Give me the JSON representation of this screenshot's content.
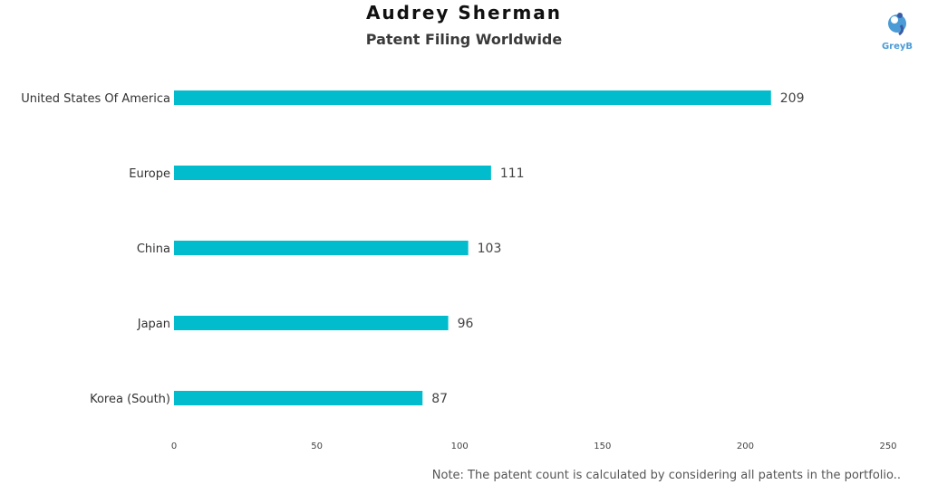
{
  "colors": {
    "bar": "#00bccc",
    "text": "#333333",
    "logo": "#4a9bd6"
  },
  "logo": {
    "text": "GreyB",
    "icon": "greyb-logo-icon"
  },
  "note": "Note: The patent count is calculated by considering all patents in the portfolio..",
  "chart_data": {
    "type": "bar",
    "orientation": "horizontal",
    "title": "Audrey Sherman",
    "subtitle": "Patent Filing Worldwide",
    "categories": [
      "United States Of America",
      "Europe",
      "China",
      "Japan",
      "Korea (South)"
    ],
    "values": [
      209,
      111,
      103,
      96,
      87
    ],
    "xlim": [
      0,
      250
    ],
    "xticks": [
      0,
      50,
      100,
      150,
      200,
      250
    ],
    "grid": false,
    "legend": "none"
  }
}
